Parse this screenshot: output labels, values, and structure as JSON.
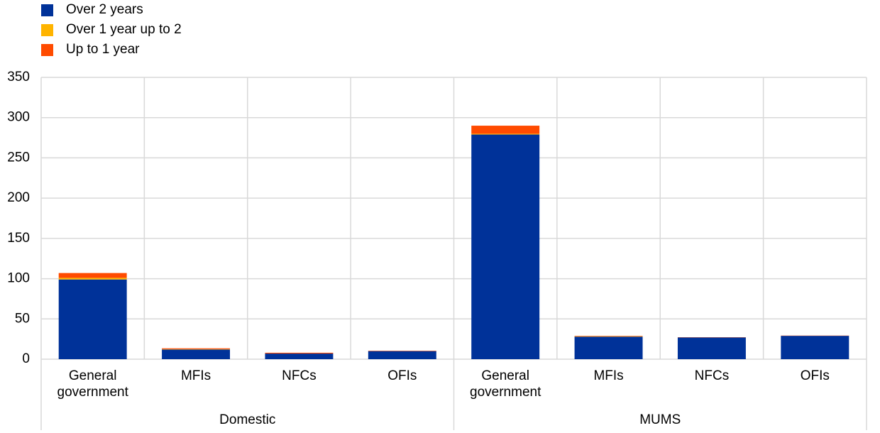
{
  "chart_data": {
    "type": "stacked_bar",
    "categories": [
      "General government",
      "MFIs",
      "NFCs",
      "OFIs",
      "General government",
      "MFIs",
      "NFCs",
      "OFIs"
    ],
    "category_groups": [
      "Domestic",
      "MUMS"
    ],
    "series": [
      {
        "name": "Over 2 years",
        "color": "#003299",
        "values": [
          99,
          12,
          7,
          10,
          279,
          28,
          27,
          29
        ]
      },
      {
        "name": "Over 1 year up to 2",
        "color": "#ffb400",
        "values": [
          2,
          0.5,
          0,
          0,
          1,
          0.5,
          0,
          0
        ]
      },
      {
        "name": "Up to 1 year",
        "color": "#ff4b00",
        "values": [
          6,
          1,
          1,
          0.5,
          10,
          0.5,
          0.3,
          0.3
        ]
      }
    ],
    "ylim": [
      0,
      350
    ],
    "yticks": [
      0,
      50,
      100,
      150,
      200,
      250,
      300,
      350
    ],
    "grid": true,
    "legend": "top-left"
  }
}
